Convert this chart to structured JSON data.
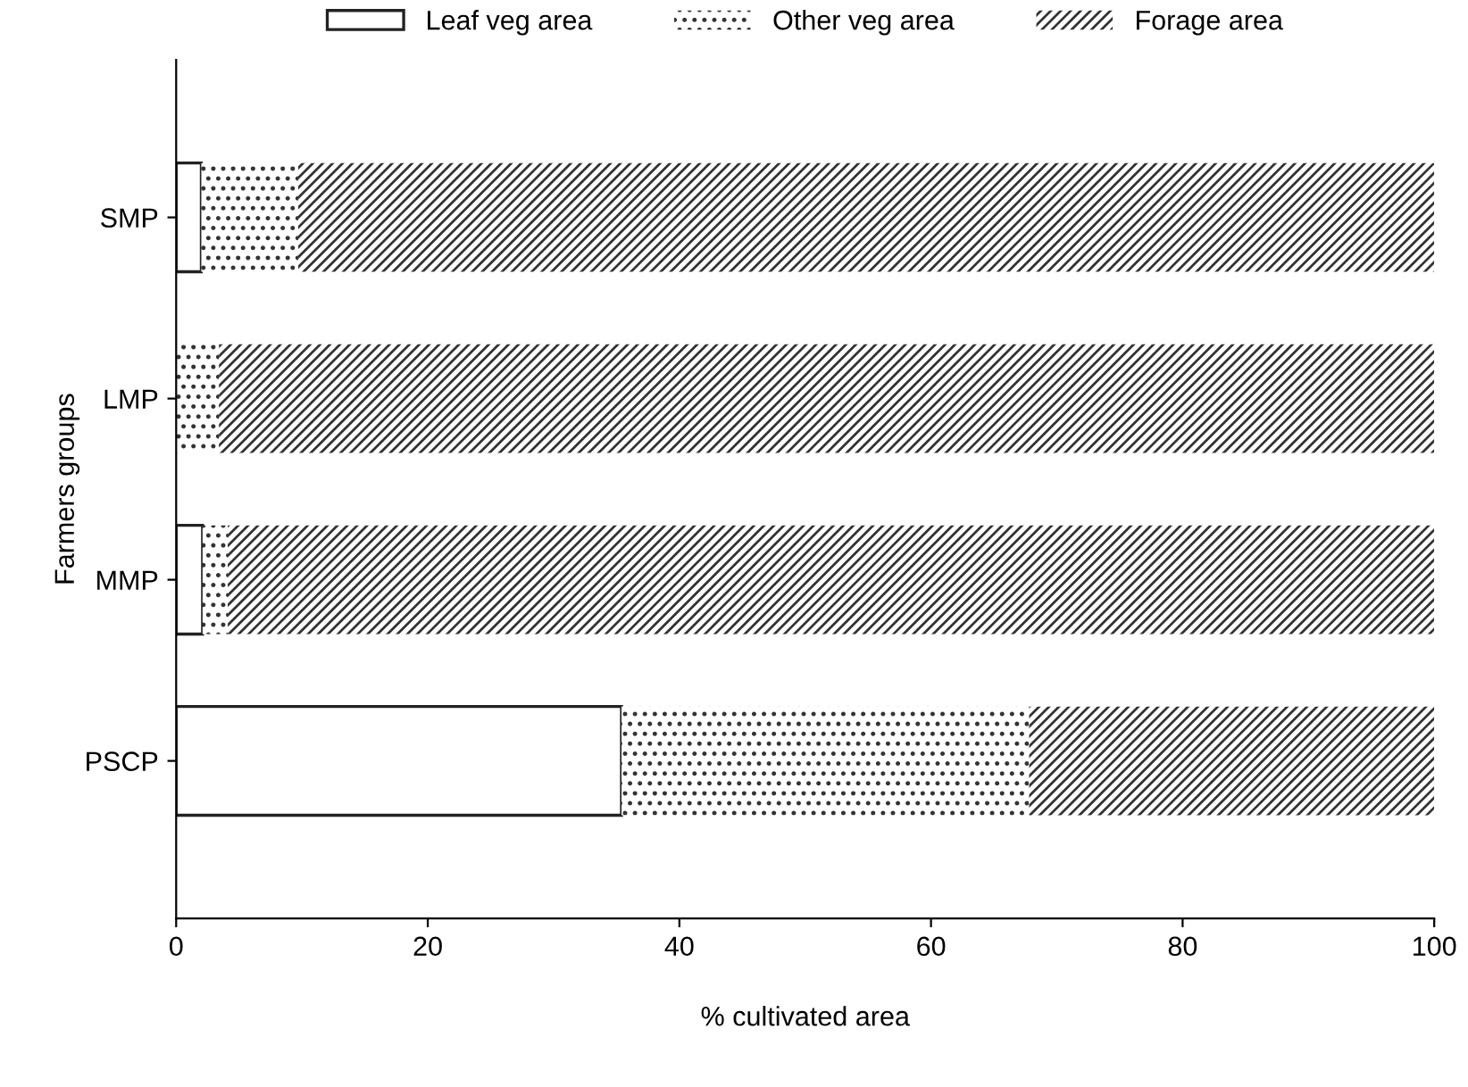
{
  "chart_data": {
    "type": "bar",
    "orientation": "horizontal",
    "stacked": true,
    "categories": [
      "SMP",
      "LMP",
      "MMP",
      "PSCP"
    ],
    "xlabel": "% cultivated area",
    "ylabel": "Farmers groups",
    "xlim": [
      0,
      100
    ],
    "xticks": [
      0,
      20,
      40,
      60,
      80,
      100
    ],
    "grid": false,
    "legend": "top",
    "series": [
      {
        "name": "Leaf veg area",
        "color": "#ffffff",
        "values": [
          2.0,
          null,
          2.1,
          35.4
        ]
      },
      {
        "name": "Other veg area",
        "color": "#ffffff",
        "values": [
          7.7,
          3.4,
          2.0,
          32.4
        ]
      },
      {
        "name": "Forage area",
        "color": "#ffffff",
        "values": [
          90.3,
          96.6,
          95.9,
          32.2
        ]
      }
    ]
  }
}
